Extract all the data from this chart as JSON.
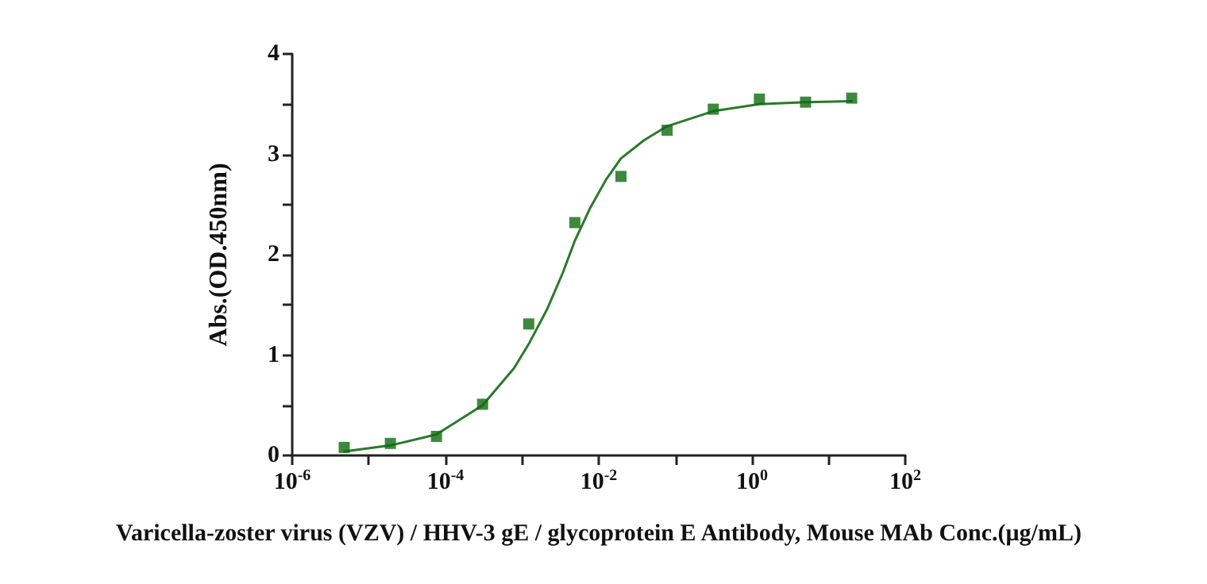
{
  "chart_data": {
    "type": "scatter",
    "xlabel": "Varicella-zoster virus (VZV) / HHV-3 gE / glycoprotein E Antibody, Mouse MAb Conc.(μg/mL)",
    "ylabel": "Abs.(OD.450nm)",
    "log": "x",
    "grid": false,
    "xlim": [
      1e-06,
      100
    ],
    "xticks": [
      {
        "value": 1e-06,
        "label": "10$^{-6}$"
      },
      {
        "value": 1e-05,
        "label": null
      },
      {
        "value": 0.0001,
        "label": "10$^{-4}$"
      },
      {
        "value": 0.001,
        "label": null
      },
      {
        "value": 0.01,
        "label": "10$^{-2}$"
      },
      {
        "value": 0.1,
        "label": null
      },
      {
        "value": 1,
        "label": "10$^{0}$"
      },
      {
        "value": 10,
        "label": null
      },
      {
        "value": 100,
        "label": "10$^{2}$"
      }
    ],
    "ylim": [
      0,
      4
    ],
    "yticks": [
      0,
      {
        "value": 0.5,
        "label": null
      },
      1,
      {
        "value": 1.5,
        "label": null
      },
      2,
      {
        "value": 2.5,
        "label": null
      },
      3,
      {
        "value": 3.5,
        "label": null
      },
      4
    ],
    "series": [
      {
        "color": "#0e6b0e",
        "marker": "square",
        "x": [
          4.77e-06,
          1.91e-05,
          7.63e-05,
          0.000305,
          0.00122,
          0.00488,
          0.0195,
          0.078,
          0.3125,
          1.25,
          5,
          20
        ],
        "values": [
          0.08,
          0.12,
          0.19,
          0.51,
          1.31,
          2.32,
          2.78,
          3.24,
          3.45,
          3.55,
          3.52,
          3.56
        ]
      },
      {
        "type": "line",
        "color": "#2a7a2a",
        "marker": "none",
        "line_style": "solid",
        "x": [
          4.77e-06,
          1.91e-05,
          7.63e-05,
          0.000305,
          0.000785,
          0.00122,
          0.0021,
          0.0034,
          0.00488,
          0.00766,
          0.0125,
          0.0195,
          0.039,
          0.078,
          0.198,
          0.3125,
          1.25,
          5,
          20
        ],
        "values": [
          0.04,
          0.1,
          0.21,
          0.5,
          0.87,
          1.11,
          1.45,
          1.82,
          2.14,
          2.46,
          2.75,
          2.96,
          3.14,
          3.28,
          3.38,
          3.43,
          3.5,
          3.52,
          3.53
        ]
      }
    ]
  }
}
